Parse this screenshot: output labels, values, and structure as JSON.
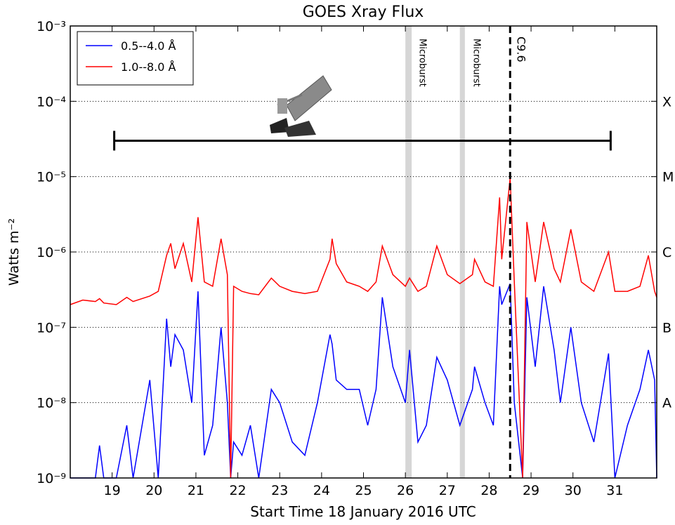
{
  "chart_data": {
    "type": "line",
    "title": "GOES Xray Flux",
    "xlabel": "Start Time 18 January 2016 UTC",
    "ylabel": "Watts m⁻²",
    "yscale": "log",
    "grid": true,
    "legend": "upper left",
    "xlim": [
      18,
      32
    ],
    "xticks": [
      19,
      20,
      21,
      22,
      23,
      24,
      25,
      26,
      27,
      28,
      29,
      30,
      31
    ],
    "ylim": [
      1e-09,
      0.001
    ],
    "yticks": [
      {
        "value": 1e-09,
        "label": "10⁻⁹"
      },
      {
        "value": 1e-08,
        "label": "10⁻⁸"
      },
      {
        "value": 1e-07,
        "label": "10⁻⁷"
      },
      {
        "value": 1e-06,
        "label": "10⁻⁶"
      },
      {
        "value": 1e-05,
        "label": "10⁻⁵"
      },
      {
        "value": 0.0001,
        "label": "10⁻⁴"
      },
      {
        "value": 0.001,
        "label": "10⁻³"
      }
    ],
    "flare_classes": [
      {
        "value": 1e-08,
        "label": "A"
      },
      {
        "value": 1e-07,
        "label": "B"
      },
      {
        "value": 1e-06,
        "label": "C"
      },
      {
        "value": 1e-05,
        "label": "M"
      },
      {
        "value": 0.0001,
        "label": "X"
      }
    ],
    "bands": [
      {
        "x0": 26.0,
        "x1": 26.15,
        "label": "Microburst",
        "color": "#bbbbbb"
      },
      {
        "x0": 27.3,
        "x1": 27.42,
        "label": "Microburst",
        "color": "#bbbbbb"
      }
    ],
    "marker_line": {
      "x": 28.5,
      "label": "C9.6"
    },
    "span_bar": {
      "x0": 19.05,
      "x1": 30.9,
      "y": 3e-05
    },
    "x": [
      18.0,
      18.3,
      18.6,
      18.7,
      18.8,
      19.1,
      19.35,
      19.5,
      19.9,
      20.1,
      20.3,
      20.4,
      20.5,
      20.7,
      20.9,
      21.05,
      21.2,
      21.4,
      21.6,
      21.75,
      21.83,
      21.9,
      22.1,
      22.3,
      22.5,
      22.8,
      23.0,
      23.3,
      23.6,
      23.9,
      24.2,
      24.25,
      24.35,
      24.6,
      24.9,
      25.1,
      25.3,
      25.45,
      25.7,
      26.0,
      26.1,
      26.3,
      26.5,
      26.75,
      27.0,
      27.3,
      27.6,
      27.65,
      27.9,
      28.1,
      28.25,
      28.3,
      28.5,
      28.6,
      28.8,
      28.9,
      29.1,
      29.3,
      29.55,
      29.7,
      29.95,
      30.2,
      30.5,
      30.85,
      31.0,
      31.3,
      31.6,
      31.8,
      31.95,
      32.0
    ],
    "series": [
      {
        "name": "0.5--4.0 Å",
        "color": "#0000ff",
        "values": [
          1e-09,
          1e-09,
          1e-09,
          2.7e-09,
          1e-09,
          1e-09,
          5e-09,
          1e-09,
          2e-08,
          1e-09,
          1.3e-07,
          3e-08,
          8e-08,
          5e-08,
          1e-08,
          3e-07,
          2e-09,
          5e-09,
          1e-07,
          1e-08,
          1e-09,
          3e-09,
          2e-09,
          5e-09,
          1e-09,
          1.5e-08,
          1e-08,
          3e-09,
          2e-09,
          1e-08,
          8e-08,
          6e-08,
          2e-08,
          1.5e-08,
          1.5e-08,
          5e-09,
          1.5e-08,
          2.5e-07,
          3e-08,
          1e-08,
          5e-08,
          3e-09,
          5e-09,
          4e-08,
          2e-08,
          5e-09,
          1.5e-08,
          3e-08,
          1e-08,
          5e-09,
          3.5e-07,
          2e-07,
          3.8e-07,
          1e-08,
          1e-09,
          2.5e-07,
          3e-08,
          3.5e-07,
          5e-08,
          1e-08,
          1e-07,
          1e-08,
          3e-09,
          4.5e-08,
          1e-09,
          5e-09,
          1.5e-08,
          5e-08,
          2e-08,
          1e-09
        ]
      },
      {
        "name": "1.0--8.0 Å",
        "color": "#ff0000",
        "values": [
          2e-07,
          2.3e-07,
          2.2e-07,
          2.4e-07,
          2.1e-07,
          2e-07,
          2.5e-07,
          2.2e-07,
          2.6e-07,
          3e-07,
          9e-07,
          1.3e-06,
          6e-07,
          1.3e-06,
          4e-07,
          2.9e-06,
          4e-07,
          3.5e-07,
          1.5e-06,
          5e-07,
          1e-09,
          3.5e-07,
          3e-07,
          2.8e-07,
          2.7e-07,
          4.5e-07,
          3.5e-07,
          3e-07,
          2.8e-07,
          3e-07,
          8e-07,
          1.5e-06,
          7e-07,
          4e-07,
          3.5e-07,
          3e-07,
          4e-07,
          1.2e-06,
          5e-07,
          3.5e-07,
          4.5e-07,
          3e-07,
          3.5e-07,
          1.2e-06,
          5e-07,
          3.8e-07,
          5e-07,
          8e-07,
          4e-07,
          3.5e-07,
          5.3e-06,
          8e-07,
          9.6e-06,
          4e-07,
          1e-09,
          2.5e-06,
          4e-07,
          2.5e-06,
          6e-07,
          4e-07,
          2e-06,
          4e-07,
          3e-07,
          1e-06,
          3e-07,
          3e-07,
          3.5e-07,
          9e-07,
          3e-07,
          2.5e-07
        ]
      }
    ]
  }
}
